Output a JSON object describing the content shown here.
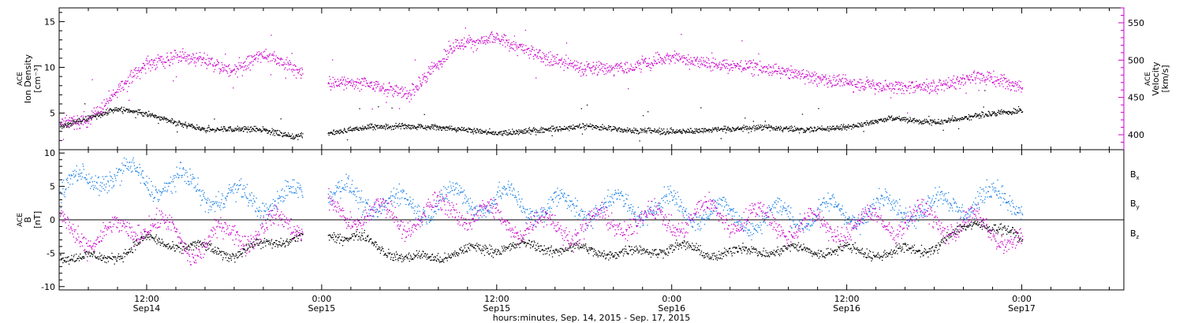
{
  "figure": {
    "xlabel": "hours:minutes, Sep. 14, 2015 - Sep. 17, 2015",
    "x_ticks": [
      {
        "time": "12:00",
        "date": "Sep14"
      },
      {
        "time": "0:00",
        "date": "Sep15"
      },
      {
        "time": "12:00",
        "date": "Sep15"
      },
      {
        "time": "0:00",
        "date": "Sep16"
      },
      {
        "time": "12:00",
        "date": "Sep16"
      },
      {
        "time": "0:00",
        "date": "Sep17"
      }
    ]
  },
  "chart_data": [
    {
      "type": "scatter",
      "panel": "top",
      "ylabel_left": [
        "ACE",
        "Ion Density",
        "[cm⁻³]"
      ],
      "ylabel_right": [
        "ACE",
        "Velocity",
        "[km/s]"
      ],
      "x_range_hours_from_sep14_0000": [
        6.0,
        79.0
      ],
      "y_left_ticks": [
        5,
        10,
        15
      ],
      "y_left_range": [
        1,
        16.5
      ],
      "y_right_ticks": [
        400,
        450,
        500,
        550
      ],
      "y_right_range": [
        380,
        570
      ],
      "colors": {
        "density": "#000000",
        "velocity": "#cc00cc",
        "right_axis": "#cc00cc"
      },
      "series": [
        {
          "name": "Ion Density",
          "axis": "left",
          "x": [
            "2015-09-14 06:00",
            "2015-09-14 08:00",
            "2015-09-14 10:00",
            "2015-09-14 12:00",
            "2015-09-14 14:00",
            "2015-09-14 16:00",
            "2015-09-14 18:00",
            "2015-09-14 20:00",
            "2015-09-14 22:00",
            "2015-09-15 00:30",
            "2015-09-15 03:00",
            "2015-09-15 06:00",
            "2015-09-15 09:00",
            "2015-09-15 12:00",
            "2015-09-15 15:00",
            "2015-09-15 18:00",
            "2015-09-15 21:00",
            "2015-09-16 00:00",
            "2015-09-16 03:00",
            "2015-09-16 06:00",
            "2015-09-16 09:00",
            "2015-09-16 12:00",
            "2015-09-16 15:00",
            "2015-09-16 18:00",
            "2015-09-16 21:00",
            "2015-09-17 00:00"
          ],
          "values": [
            3.5,
            4.5,
            5.5,
            5,
            4,
            3.2,
            3.3,
            3.2,
            2.5,
            2.8,
            3.5,
            3.6,
            3.4,
            2.8,
            3.2,
            3.6,
            3.2,
            3,
            3.2,
            3.5,
            3.2,
            3.5,
            4.5,
            4,
            4.8,
            5.4
          ]
        },
        {
          "name": "Velocity",
          "axis": "right",
          "x": [
            "2015-09-14 06:00",
            "2015-09-14 08:00",
            "2015-09-14 10:00",
            "2015-09-14 12:00",
            "2015-09-14 14:00",
            "2015-09-14 16:00",
            "2015-09-14 18:00",
            "2015-09-14 20:00",
            "2015-09-14 22:00",
            "2015-09-15 00:30",
            "2015-09-15 03:00",
            "2015-09-15 06:00",
            "2015-09-15 09:00",
            "2015-09-15 12:00",
            "2015-09-15 15:00",
            "2015-09-15 18:00",
            "2015-09-15 21:00",
            "2015-09-16 00:00",
            "2015-09-16 03:00",
            "2015-09-16 06:00",
            "2015-09-16 09:00",
            "2015-09-16 12:00",
            "2015-09-16 15:00",
            "2015-09-16 18:00",
            "2015-09-16 21:00",
            "2015-09-17 00:00"
          ],
          "values": [
            415,
            420,
            460,
            495,
            505,
            500,
            485,
            510,
            490,
            470,
            470,
            455,
            520,
            530,
            505,
            490,
            490,
            505,
            495,
            490,
            480,
            470,
            465,
            465,
            480,
            465
          ]
        }
      ]
    },
    {
      "type": "scatter",
      "panel": "bottom",
      "ylabel_left": [
        "ACE",
        "B",
        "[nT]"
      ],
      "y_ticks": [
        -10,
        -5,
        0,
        5,
        10
      ],
      "y_range": [
        -10.5,
        10.5
      ],
      "zero_line": true,
      "legend": [
        {
          "label": "B",
          "sub": "x",
          "color": "#000000"
        },
        {
          "label": "B",
          "sub": "y",
          "color": "#1a80e6"
        },
        {
          "label": "B",
          "sub": "z",
          "color": "#cc00cc"
        }
      ],
      "series": [
        {
          "name": "Bx",
          "x": [
            "2015-09-14 06:00",
            "2015-09-14 09:00",
            "2015-09-14 12:00",
            "2015-09-14 15:00",
            "2015-09-14 18:00",
            "2015-09-14 21:00",
            "2015-09-15 00:30",
            "2015-09-15 03:00",
            "2015-09-15 06:00",
            "2015-09-15 09:00",
            "2015-09-15 12:00",
            "2015-09-15 15:00",
            "2015-09-15 18:00",
            "2015-09-15 21:00",
            "2015-09-16 00:00",
            "2015-09-16 03:00",
            "2015-09-16 06:00",
            "2015-09-16 09:00",
            "2015-09-16 12:00",
            "2015-09-16 15:00",
            "2015-09-16 18:00",
            "2015-09-16 21:00",
            "2015-09-17 00:00"
          ],
          "values": [
            -5,
            -6,
            -3,
            -4,
            -5,
            -3,
            -2,
            -3,
            -6,
            -5,
            -4,
            -4,
            -4.5,
            -5,
            -4,
            -5,
            -4.5,
            -4.5,
            -4.5,
            -5,
            -4,
            0,
            -3
          ]
        },
        {
          "name": "By",
          "x": [
            "2015-09-14 06:00",
            "2015-09-14 09:00",
            "2015-09-14 12:00",
            "2015-09-14 15:00",
            "2015-09-14 18:00",
            "2015-09-14 21:00",
            "2015-09-15 00:30",
            "2015-09-15 03:00",
            "2015-09-15 06:00",
            "2015-09-15 09:00",
            "2015-09-15 12:00",
            "2015-09-15 15:00",
            "2015-09-15 18:00",
            "2015-09-15 21:00",
            "2015-09-16 00:00",
            "2015-09-16 03:00",
            "2015-09-16 06:00",
            "2015-09-16 09:00",
            "2015-09-16 12:00",
            "2015-09-16 15:00",
            "2015-09-16 18:00",
            "2015-09-16 21:00",
            "2015-09-17 00:00"
          ],
          "values": [
            4,
            7,
            6,
            5,
            3,
            3,
            4,
            3,
            2,
            3,
            3,
            2,
            2,
            2,
            2,
            1,
            0,
            1,
            1,
            2,
            2,
            3,
            3
          ]
        },
        {
          "name": "Bz",
          "x": [
            "2015-09-14 06:00",
            "2015-09-14 09:00",
            "2015-09-14 12:00",
            "2015-09-14 15:00",
            "2015-09-14 18:00",
            "2015-09-14 21:00",
            "2015-09-15 00:30",
            "2015-09-15 03:00",
            "2015-09-15 06:00",
            "2015-09-15 09:00",
            "2015-09-15 12:00",
            "2015-09-15 15:00",
            "2015-09-15 18:00",
            "2015-09-15 21:00",
            "2015-09-16 00:00",
            "2015-09-16 03:00",
            "2015-09-16 06:00",
            "2015-09-16 09:00",
            "2015-09-16 12:00",
            "2015-09-16 15:00",
            "2015-09-16 18:00",
            "2015-09-16 21:00",
            "2015-09-17 00:00"
          ],
          "values": [
            -1,
            -3,
            0,
            -4,
            -2,
            -1,
            1,
            1,
            0,
            2,
            0,
            -1,
            -1,
            0,
            0,
            1,
            0,
            -1,
            -1,
            0,
            0,
            -1,
            -3
          ]
        }
      ]
    }
  ]
}
